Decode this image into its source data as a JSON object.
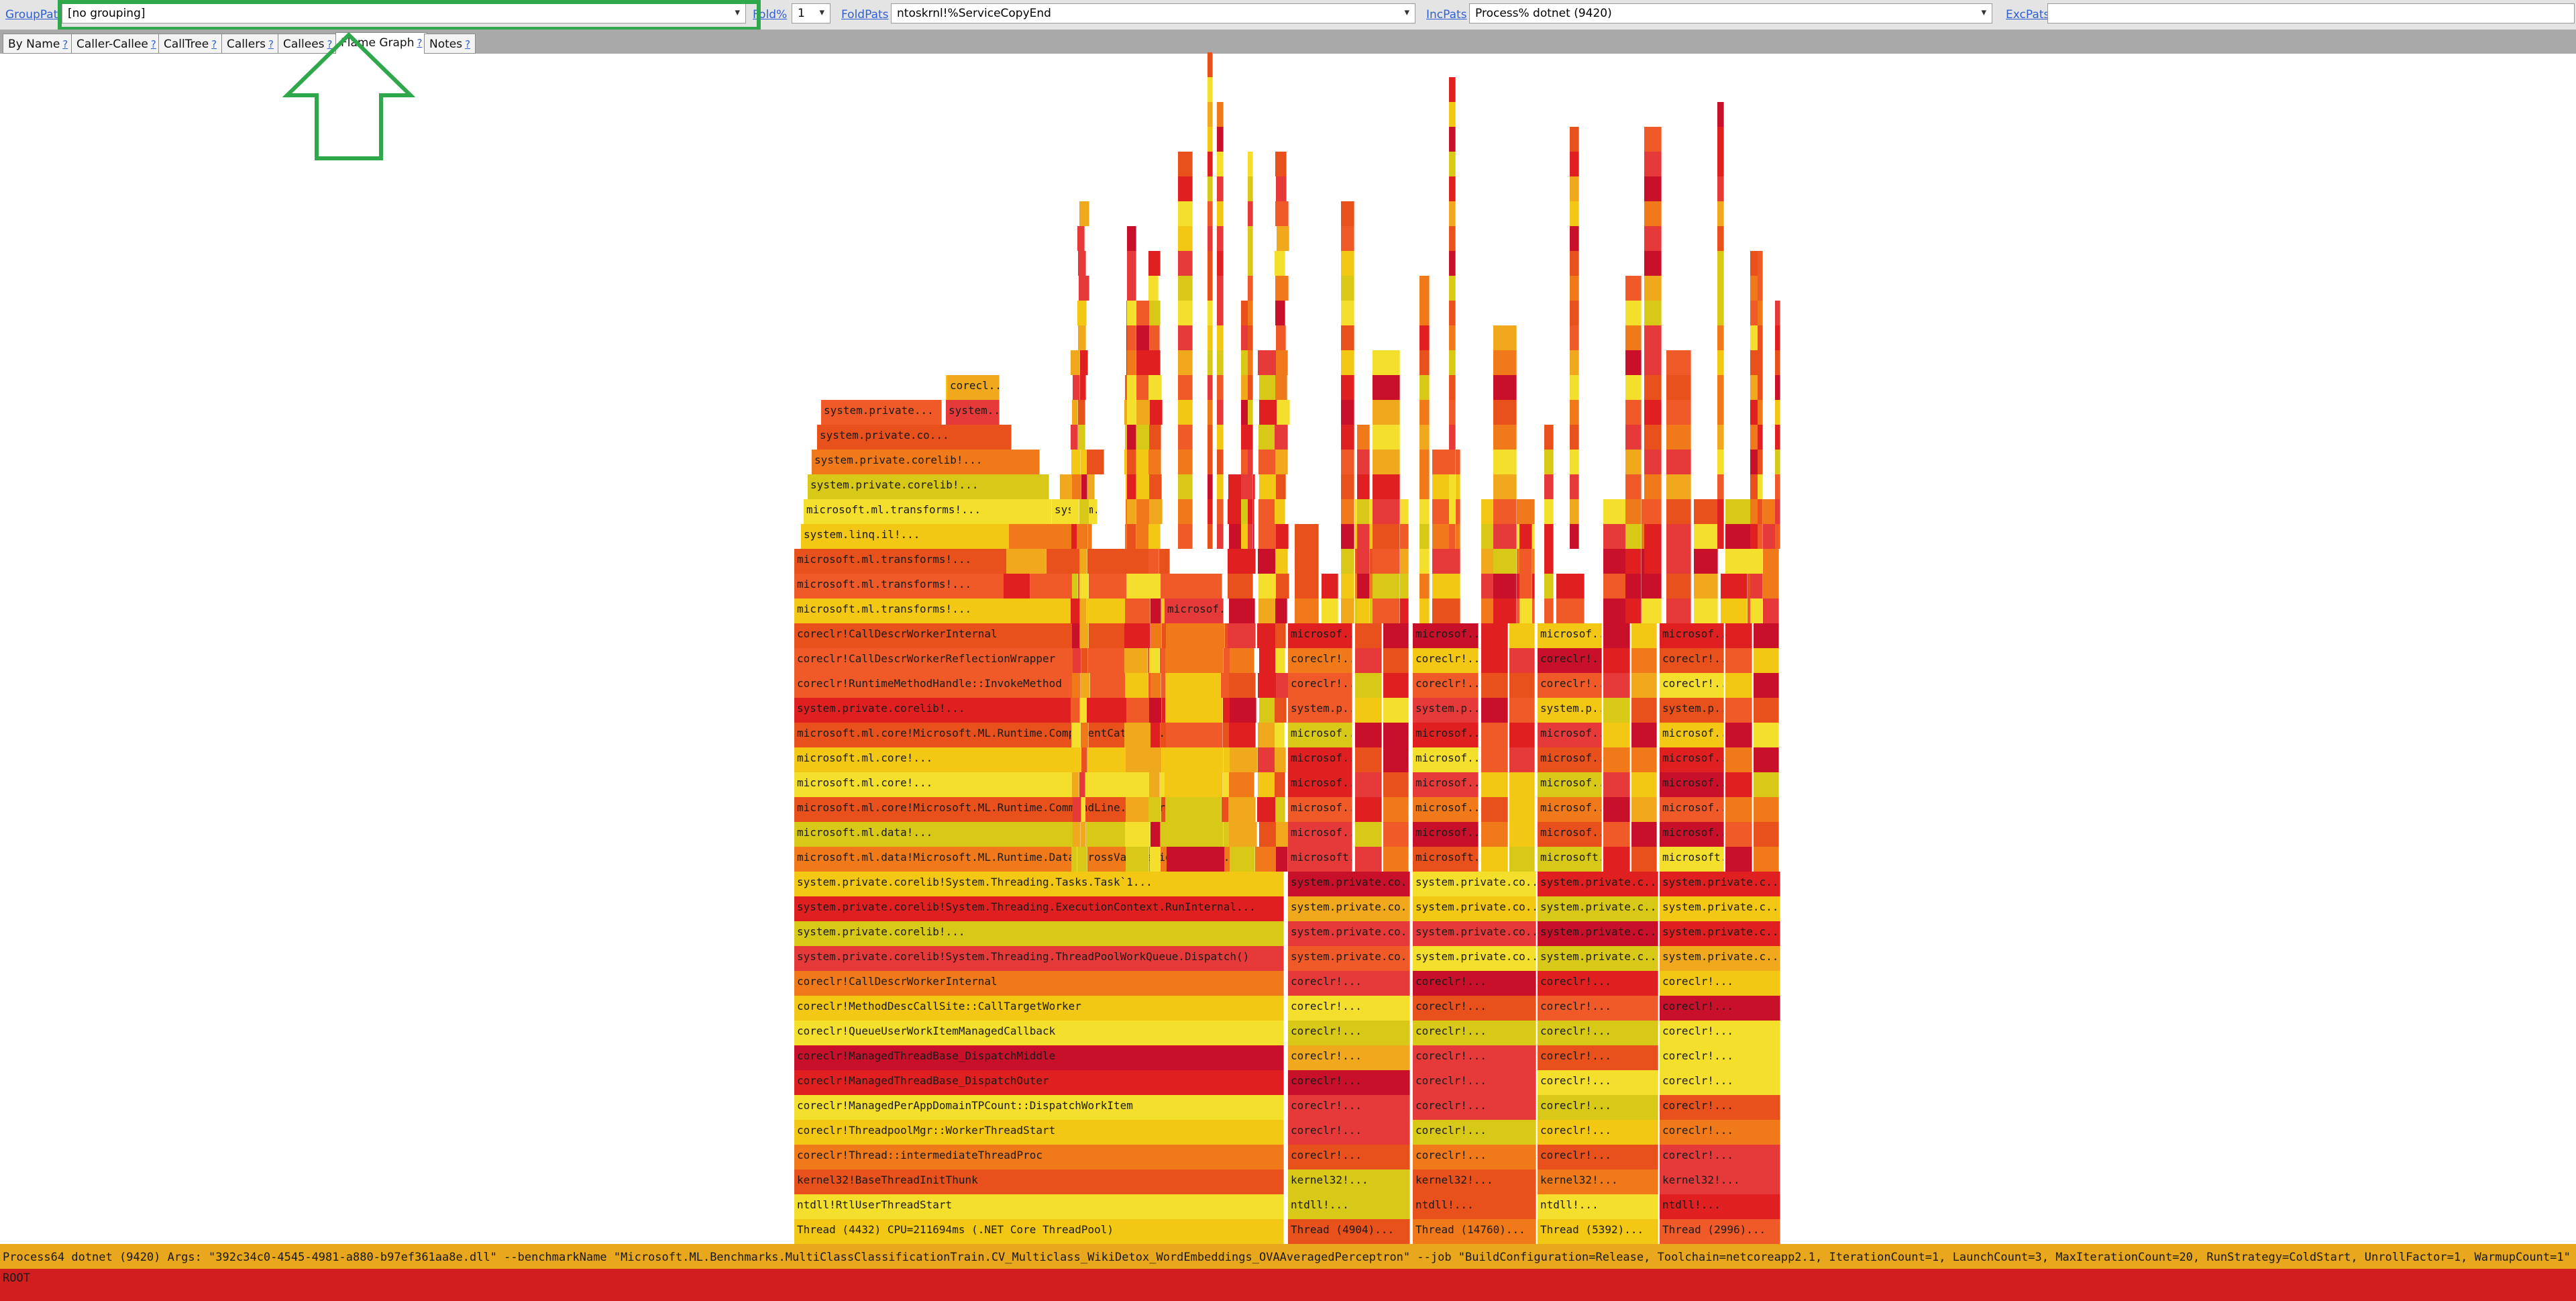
{
  "toolbar": {
    "group_pats_label": "GroupPats",
    "group_pats_value": "[no grouping]",
    "fold_pct_label": "Fold%",
    "fold_pct_value": "1",
    "fold_pats_label": "FoldPats",
    "fold_pats_value": "ntoskrnl!%ServiceCopyEnd",
    "inc_pats_label": "IncPats",
    "inc_pats_value": "Process% dotnet (9420)",
    "exc_pats_label": "ExcPats",
    "exc_pats_value": ""
  },
  "tabs": [
    {
      "label": "By Name"
    },
    {
      "label": "Caller-Callee"
    },
    {
      "label": "CallTree"
    },
    {
      "label": "Callers"
    },
    {
      "label": "Callees"
    },
    {
      "label": "Flame Graph"
    },
    {
      "label": "Notes"
    }
  ],
  "tab_help": "?",
  "active_tab": "Flame Graph",
  "colors": {
    "highlight": "#2ea84a",
    "palette": [
      "#e02020",
      "#e8501c",
      "#f07a1a",
      "#f0a81c",
      "#f2c814",
      "#f4e02c",
      "#d8c818",
      "#e63a3a",
      "#c8102a",
      "#ef5a28"
    ]
  },
  "flame": {
    "main_stack": [
      "Thread (4432) CPU=211694ms (.NET Core ThreadPool)",
      "ntdll!RtlUserThreadStart",
      "kernel32!BaseThreadInitThunk",
      "coreclr!Thread::intermediateThreadProc",
      "coreclr!ThreadpoolMgr::WorkerThreadStart",
      "coreclr!ManagedPerAppDomainTPCount::DispatchWorkItem",
      "coreclr!ManagedThreadBase_DispatchOuter",
      "coreclr!ManagedThreadBase_DispatchMiddle",
      "coreclr!QueueUserWorkItemManagedCallback",
      "coreclr!MethodDescCallSite::CallTargetWorker",
      "coreclr!CallDescrWorkerInternal",
      "system.private.corelib!System.Threading.ThreadPoolWorkQueue.Dispatch()",
      "system.private.corelib!...",
      "system.private.corelib!System.Threading.ExecutionContext.RunInternal...",
      "system.private.corelib!System.Threading.Tasks.Task`1...",
      "microsoft.ml.data!Microsoft.ML.Runtime.Data.CrossValidationCommand...",
      "microsoft.ml.data!...",
      "microsoft.ml.core!Microsoft.ML.Runtime.CommandLine.CmdParser...",
      "microsoft.ml.core!...",
      "microsoft.ml.core!...",
      "microsoft.ml.core!Microsoft.ML.Runtime.ComponentCatalog...",
      "system.private.corelib!...",
      "coreclr!RuntimeMethodHandle::InvokeMethod",
      "coreclr!CallDescrWorkerReflectionWrapper",
      "coreclr!CallDescrWorkerInternal",
      "microsoft.ml.transforms!...",
      "microsoft.ml.transforms!...",
      "microsoft.ml.transforms!...",
      "system.linq.il!...",
      "microsoft.ml.transforms!...",
      "system.private.corelib!...",
      "system.private.corelib!...",
      "system.private.co...",
      "system.private...",
      "corecl..."
    ],
    "side_stack": [
      "system...",
      "corecl...",
      "system..."
    ],
    "micro_label": "microsof...",
    "threads": [
      {
        "thread": "Thread (4904)...",
        "stack": [
          "ntdll!...",
          "kernel32!...",
          "coreclr!...",
          "coreclr!...",
          "coreclr!...",
          "coreclr!...",
          "coreclr!...",
          "coreclr!...",
          "coreclr!...",
          "coreclr!...",
          "system.private.co...",
          "system.private.co...",
          "system.private.co...",
          "system.private.co...",
          "microsoft.ml.data...",
          "microsof...",
          "microsof...",
          "microsof...",
          "microsof...",
          "microsof...",
          "system.p...",
          "coreclr!...",
          "coreclr!...",
          "microsof..."
        ]
      },
      {
        "thread": "Thread (14760)...",
        "stack": [
          "ntdll!...",
          "kernel32!...",
          "coreclr!...",
          "coreclr!...",
          "coreclr!...",
          "coreclr!...",
          "coreclr!...",
          "coreclr!...",
          "coreclr!...",
          "coreclr!...",
          "system.private.co...",
          "system.private.co...",
          "system.private.co...",
          "system.private.co...",
          "microsoft.ml.data...",
          "microsof...",
          "microsof...",
          "microsof...",
          "microsof...",
          "microsof...",
          "system.p...",
          "coreclr!...",
          "coreclr!...",
          "microsof..."
        ]
      },
      {
        "thread": "Thread (5392)...",
        "stack": [
          "ntdll!...",
          "kernel32!...",
          "coreclr!...",
          "coreclr!...",
          "coreclr!...",
          "coreclr!...",
          "coreclr!...",
          "coreclr!...",
          "coreclr!...",
          "coreclr!...",
          "system.private.c...",
          "system.private.c...",
          "system.private.c...",
          "system.private.c...",
          "microsoft.ml.dat...",
          "microsof...",
          "microsof...",
          "microsof...",
          "microsof...",
          "microsof...",
          "system.p...",
          "coreclr!...",
          "coreclr!...",
          "microsof..."
        ]
      },
      {
        "thread": "Thread (2996)...",
        "stack": [
          "ntdll!...",
          "kernel32!...",
          "coreclr!...",
          "coreclr!...",
          "coreclr!...",
          "coreclr!...",
          "coreclr!...",
          "coreclr!...",
          "coreclr!...",
          "coreclr!...",
          "system.private.c...",
          "system.private.c...",
          "system.private.c...",
          "system.private.c...",
          "microsoft.ml.dat...",
          "microsof...",
          "microsof...",
          "microsof...",
          "microsof...",
          "microsof...",
          "system.p...",
          "coreclr!...",
          "coreclr!...",
          "microsof..."
        ]
      }
    ],
    "process_bar": "Process64 dotnet (9420) Args:  \"392c34c0-4545-4981-a880-b97ef361aa8e.dll\" --benchmarkName \"Microsoft.ML.Benchmarks.MultiClassClassificationTrain.CV_Multiclass_WikiDetox_WordEmbeddings_OVAAveragedPerceptron\" --job \"BuildConfiguration=Release, Toolchain=netcoreapp2.1, IterationCount=1, LaunchCount=3, MaxIterationCount=20, RunStrategy=ColdStart, UnrollFactor=1, WarmupCount=1\"",
    "root": "ROOT"
  }
}
